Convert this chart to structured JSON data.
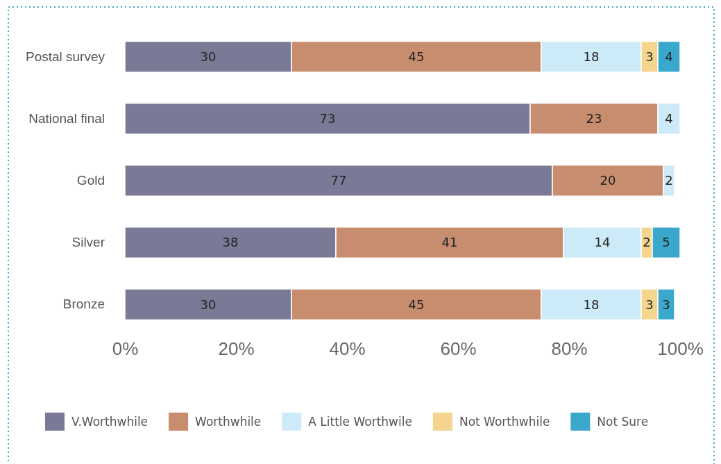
{
  "chart_data": {
    "type": "bar",
    "orientation": "horizontal",
    "stacked": true,
    "categories": [
      "Postal survey",
      "National final",
      "Gold",
      "Silver",
      "Bronze"
    ],
    "series": [
      {
        "name": "V.Worthwhile",
        "color": "#7a7a96",
        "values": [
          30,
          73,
          77,
          38,
          30
        ]
      },
      {
        "name": "Worthwhile",
        "color": "#c78d6e",
        "values": [
          45,
          23,
          20,
          41,
          45
        ]
      },
      {
        "name": "A Little Worthwile",
        "color": "#cdeaf8",
        "values": [
          18,
          4,
          2,
          14,
          18
        ]
      },
      {
        "name": "Not Worthwhile",
        "color": "#f5d58e",
        "values": [
          3,
          null,
          null,
          2,
          3
        ]
      },
      {
        "name": "Not Sure",
        "color": "#3aa8cc",
        "values": [
          4,
          null,
          null,
          5,
          3
        ]
      }
    ],
    "xlim": [
      0,
      100
    ],
    "xticks": [
      {
        "value": 0,
        "label": "0%"
      },
      {
        "value": 20,
        "label": "20%"
      },
      {
        "value": 40,
        "label": "40%"
      },
      {
        "value": 60,
        "label": "60%"
      },
      {
        "value": 80,
        "label": "80%"
      },
      {
        "value": 100,
        "label": "100%"
      }
    ],
    "data_labels": true,
    "legend": "bottom",
    "grid": false
  }
}
